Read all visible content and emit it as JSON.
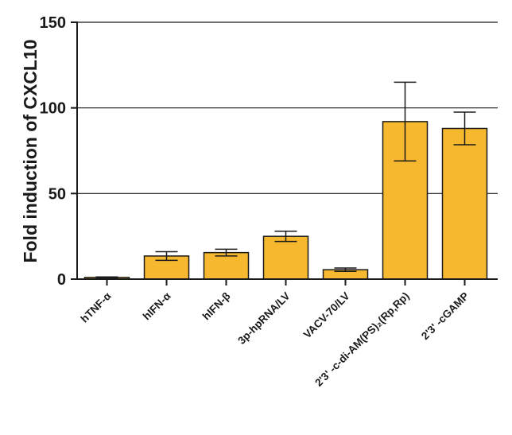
{
  "chart_data": {
    "type": "bar",
    "title": "",
    "xlabel": "",
    "ylabel": "Fold induction of CXCL10",
    "ylim": [
      0,
      150
    ],
    "yticks": [
      0,
      50,
      100,
      150
    ],
    "grid": "horizontal",
    "legend": "none",
    "bar_color": "#f5b82e",
    "categories": [
      "hTNF-α",
      "hIFN-α",
      "hIFN-β",
      "3p-hpRNA/LV",
      "VACV-70/LV",
      "2'3' -c-di-AM(PS)₂(Rp,Rp)",
      "2'3' -cGAMP"
    ],
    "values": [
      1,
      13.5,
      15.5,
      25,
      5.5,
      92,
      88
    ],
    "error_bars": [
      0.3,
      2.5,
      2.0,
      3.0,
      1.0,
      23,
      9.5
    ]
  }
}
